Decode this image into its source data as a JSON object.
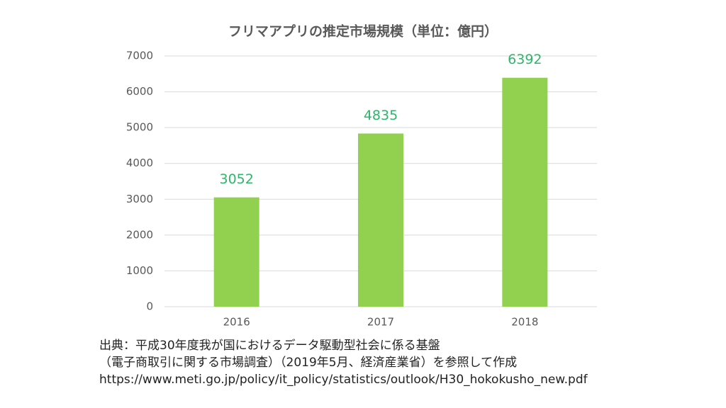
{
  "chart_data": {
    "type": "bar",
    "title": "フリマアプリの推定市場規模（単位：億円）",
    "categories": [
      "2016",
      "2017",
      "2018"
    ],
    "values": [
      3052,
      4835,
      6392
    ],
    "color": "#92d050",
    "ylim": [
      0,
      7000
    ],
    "yticks": [
      0,
      1000,
      2000,
      3000,
      4000,
      5000,
      6000,
      7000
    ],
    "grid": true,
    "source": [
      "出典：平成30年度我が国におけるデータ駆動型社会に係る基盤",
      "（電子商取引に関する市場調査）（2019年5月、経済産業省）を参照して作成",
      "https://www.meti.go.jp/policy/it_policy/statistics/outlook/H30_hokokusho_new.pdf"
    ]
  }
}
